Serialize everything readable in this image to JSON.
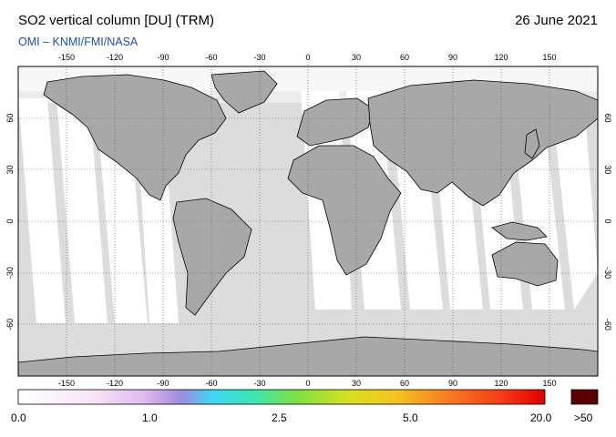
{
  "header": {
    "title": "SO2 vertical column [DU] (TRM)",
    "date": "26 June 2021",
    "credit": "OMI  –  KNMI/FMI/NASA"
  },
  "map": {
    "projection": "equirectangular",
    "lon_range": [
      -180,
      180
    ],
    "lat_range": [
      -90,
      90
    ],
    "lon_ticks": [
      "-150",
      "-120",
      "-90",
      "-60",
      "-30",
      "0",
      "30",
      "60",
      "90",
      "120",
      "150"
    ],
    "lat_ticks": [
      "60",
      "30",
      "0",
      "-30",
      "-60"
    ],
    "colors": {
      "ocean": "#dcdcdc",
      "swath": "#ffffff",
      "land": "#a8a8a8",
      "coast": "#000000",
      "grid": "#555555"
    }
  },
  "colorbar": {
    "labels": [
      "0.0",
      "1.0",
      "2.5",
      "5.0",
      "20.0",
      ">50"
    ],
    "overflow_color": "#5a0000"
  }
}
